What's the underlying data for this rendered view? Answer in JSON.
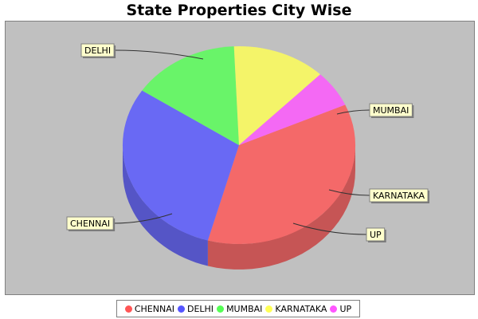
{
  "chart_data": {
    "type": "pie",
    "title": "State Properties City Wise",
    "categories": [
      "CHENNAI",
      "DELHI",
      "MUMBAI",
      "KARNATAKA",
      "UP"
    ],
    "values": [
      36,
      30,
      15,
      13,
      6
    ],
    "colors": [
      "#ff5555",
      "#5555ff",
      "#55ff55",
      "#ffff55",
      "#ff55ff"
    ],
    "style": "3d-exploded-pie",
    "legend": "bottom",
    "labels": "callout-boxes"
  }
}
